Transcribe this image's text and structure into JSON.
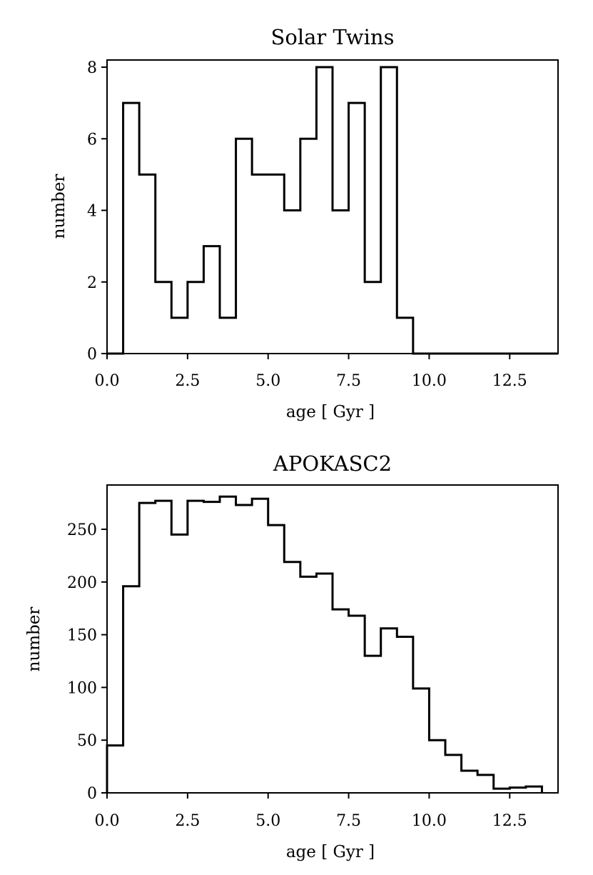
{
  "chart_data": [
    {
      "type": "histogram",
      "title": "Solar Twins",
      "xlabel": "age [ Gyr ]",
      "ylabel": "number",
      "xlim": [
        0.0,
        14.0
      ],
      "ylim": [
        0,
        8.2
      ],
      "bin_width": 0.5,
      "bin_start": 0.0,
      "values": [
        0,
        7,
        5,
        2,
        1,
        2,
        3,
        1,
        6,
        5,
        5,
        4,
        6,
        8,
        4,
        7,
        2,
        8,
        1,
        0,
        0,
        0,
        0,
        0,
        0,
        0,
        0,
        0
      ],
      "xticks": [
        "0.0",
        "2.5",
        "5.0",
        "7.5",
        "10.0",
        "12.5"
      ],
      "xtick_values": [
        0.0,
        2.5,
        5.0,
        7.5,
        10.0,
        12.5
      ],
      "yticks": [
        "0",
        "2",
        "4",
        "6",
        "8"
      ],
      "ytick_values": [
        0,
        2,
        4,
        6,
        8
      ]
    },
    {
      "type": "histogram",
      "title": "APOKASC2",
      "xlabel": "age [ Gyr ]",
      "ylabel": "number",
      "xlim": [
        0.0,
        14.0
      ],
      "ylim": [
        0,
        292
      ],
      "bin_width": 0.5,
      "bin_start": 0.0,
      "values": [
        45,
        196,
        275,
        277,
        245,
        277,
        276,
        281,
        273,
        279,
        254,
        219,
        205,
        208,
        174,
        168,
        130,
        156,
        148,
        99,
        50,
        36,
        21,
        17,
        4,
        5,
        6
      ],
      "xticks": [
        "0.0",
        "2.5",
        "5.0",
        "7.5",
        "10.0",
        "12.5"
      ],
      "xtick_values": [
        0.0,
        2.5,
        5.0,
        7.5,
        10.0,
        12.5
      ],
      "yticks": [
        "0",
        "50",
        "100",
        "150",
        "200",
        "250"
      ],
      "ytick_values": [
        0,
        50,
        100,
        150,
        200,
        250
      ]
    }
  ]
}
